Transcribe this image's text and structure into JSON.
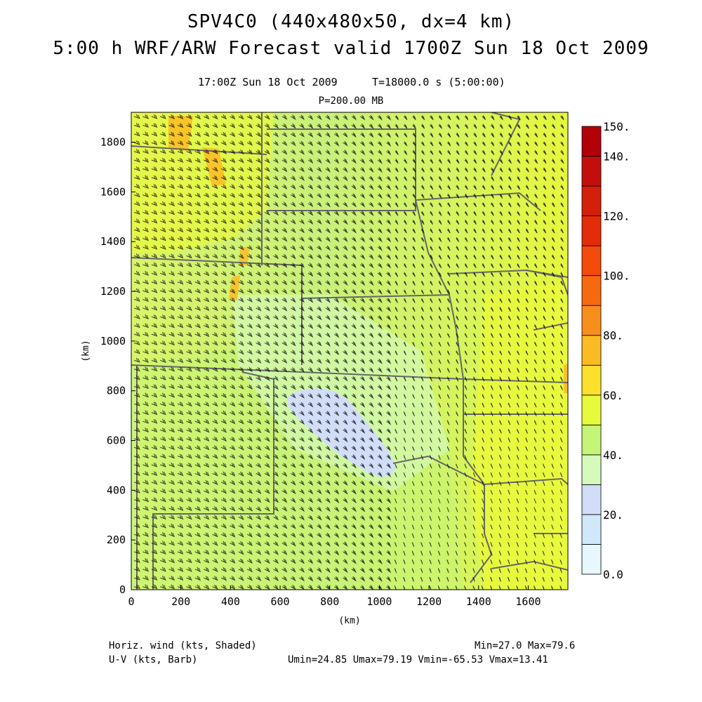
{
  "title_line1": "SPV4C0 (440x480x50, dx=4 km)",
  "title_line2": "5:00 h WRF/ARW Forecast valid 1700Z Sun 18 Oct 2009",
  "valid_time": "17:00Z Sun 18 Oct 2009",
  "sim_time": "T=18000.0 s (5:00:00)",
  "level": "P=200.00 MB",
  "footer": {
    "field1": "Horiz. wind (kts, Shaded)",
    "field2": "U-V (kts, Barb)",
    "minmax": "Min=27.0 Max=79.6",
    "uv_stats": "Umin=24.85 Umax=79.19 Vmin=-65.53 Vmax=13.41"
  },
  "colors": {
    "background": "#ffffff",
    "border_lines": "#666666",
    "barb": "#000000"
  },
  "chart_data": {
    "type": "heatmap",
    "xlabel": "(km)",
    "ylabel": "(km)",
    "xlim": [
      0,
      1760
    ],
    "ylim": [
      0,
      1920
    ],
    "xticks": [
      0,
      200,
      400,
      600,
      800,
      1000,
      1200,
      1400,
      1600
    ],
    "yticks": [
      0,
      200,
      400,
      600,
      800,
      1000,
      1200,
      1400,
      1600,
      1800
    ],
    "colorbar": {
      "levels": [
        0,
        10,
        20,
        30,
        40,
        50,
        60,
        70,
        80,
        90,
        100,
        110,
        120,
        130,
        140,
        150
      ],
      "labels": [
        "0.0",
        "20.",
        "40.",
        "60.",
        "80.",
        "100.",
        "120.",
        "140.",
        "150."
      ],
      "label_values": [
        0,
        20,
        40,
        60,
        80,
        100,
        120,
        140,
        150
      ],
      "colors": [
        "#e6f7fd",
        "#cfe8fa",
        "#d2def8",
        "#d4fbbb",
        "#c6f477",
        "#e8fa3c",
        "#fde02b",
        "#fbbb22",
        "#f88f1c",
        "#f6690f",
        "#f24b0b",
        "#e42b0a",
        "#d41f0b",
        "#c30f0b",
        "#b2000b"
      ]
    },
    "wind_speed_kts": {
      "min": 27.0,
      "max": 79.6
    },
    "u_kts": {
      "min": 24.85,
      "max": 79.19
    },
    "v_kts": {
      "min": -65.53,
      "max": 13.41
    }
  }
}
